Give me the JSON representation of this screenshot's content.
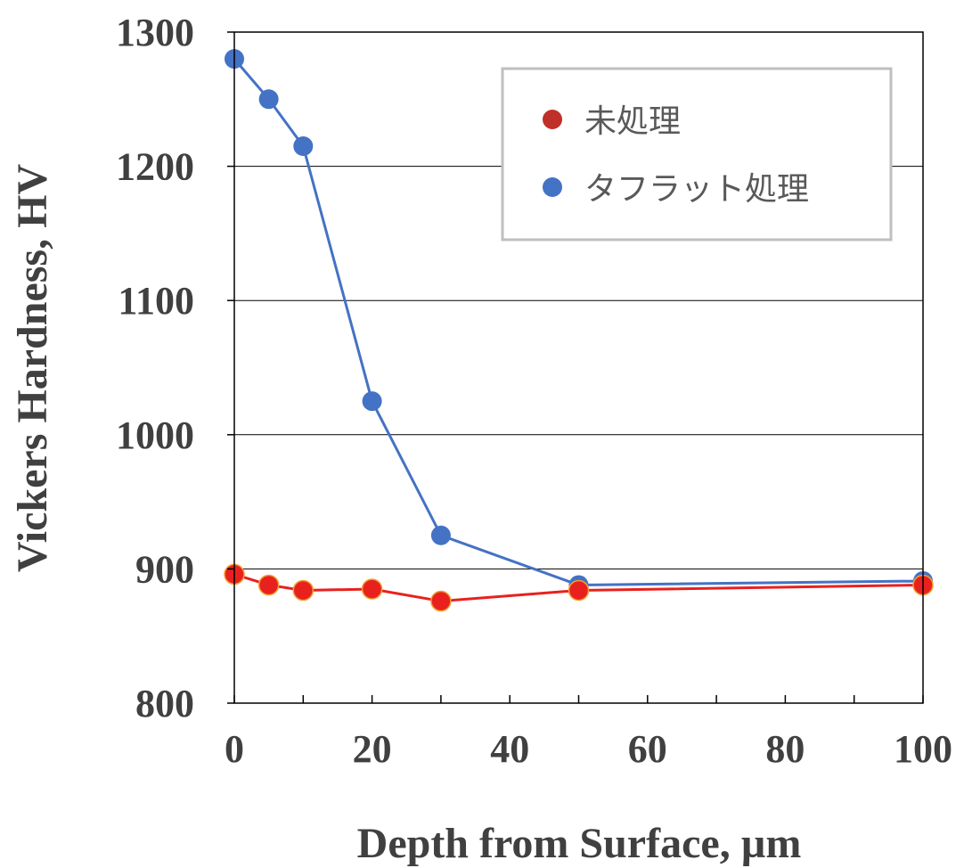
{
  "chart_data": {
    "type": "line",
    "xlabel": "Depth from Surface, µm",
    "ylabel": "Vickers Hardness, HV",
    "xlim": [
      0,
      100
    ],
    "ylim": [
      800,
      1300
    ],
    "x_ticks": [
      0,
      20,
      40,
      60,
      80,
      100
    ],
    "x_tick_labels": [
      "0",
      "20",
      "40",
      "60",
      "80",
      "100"
    ],
    "x_minor_step": 10,
    "y_ticks": [
      800,
      900,
      1000,
      1100,
      1200,
      1300
    ],
    "y_tick_labels": [
      "800",
      "900",
      "1000",
      "1100",
      "1200",
      "1300"
    ],
    "grid": "horizontal major",
    "legend_position": "top-right",
    "series": [
      {
        "name": "未処理",
        "color": "#e8211e",
        "marker_color": "#e8211e",
        "legend_marker_color": "#c0302a",
        "x": [
          0,
          5,
          10,
          20,
          30,
          50,
          100
        ],
        "y": [
          896,
          888,
          884,
          885,
          876,
          884,
          888
        ]
      },
      {
        "name": "タフラット処理",
        "color": "#4472c4",
        "marker_color": "#4472c4",
        "legend_marker_color": "#4472c4",
        "x": [
          0,
          5,
          10,
          20,
          30,
          50,
          100
        ],
        "y": [
          1280,
          1250,
          1215,
          1025,
          925,
          888,
          891
        ]
      }
    ]
  }
}
